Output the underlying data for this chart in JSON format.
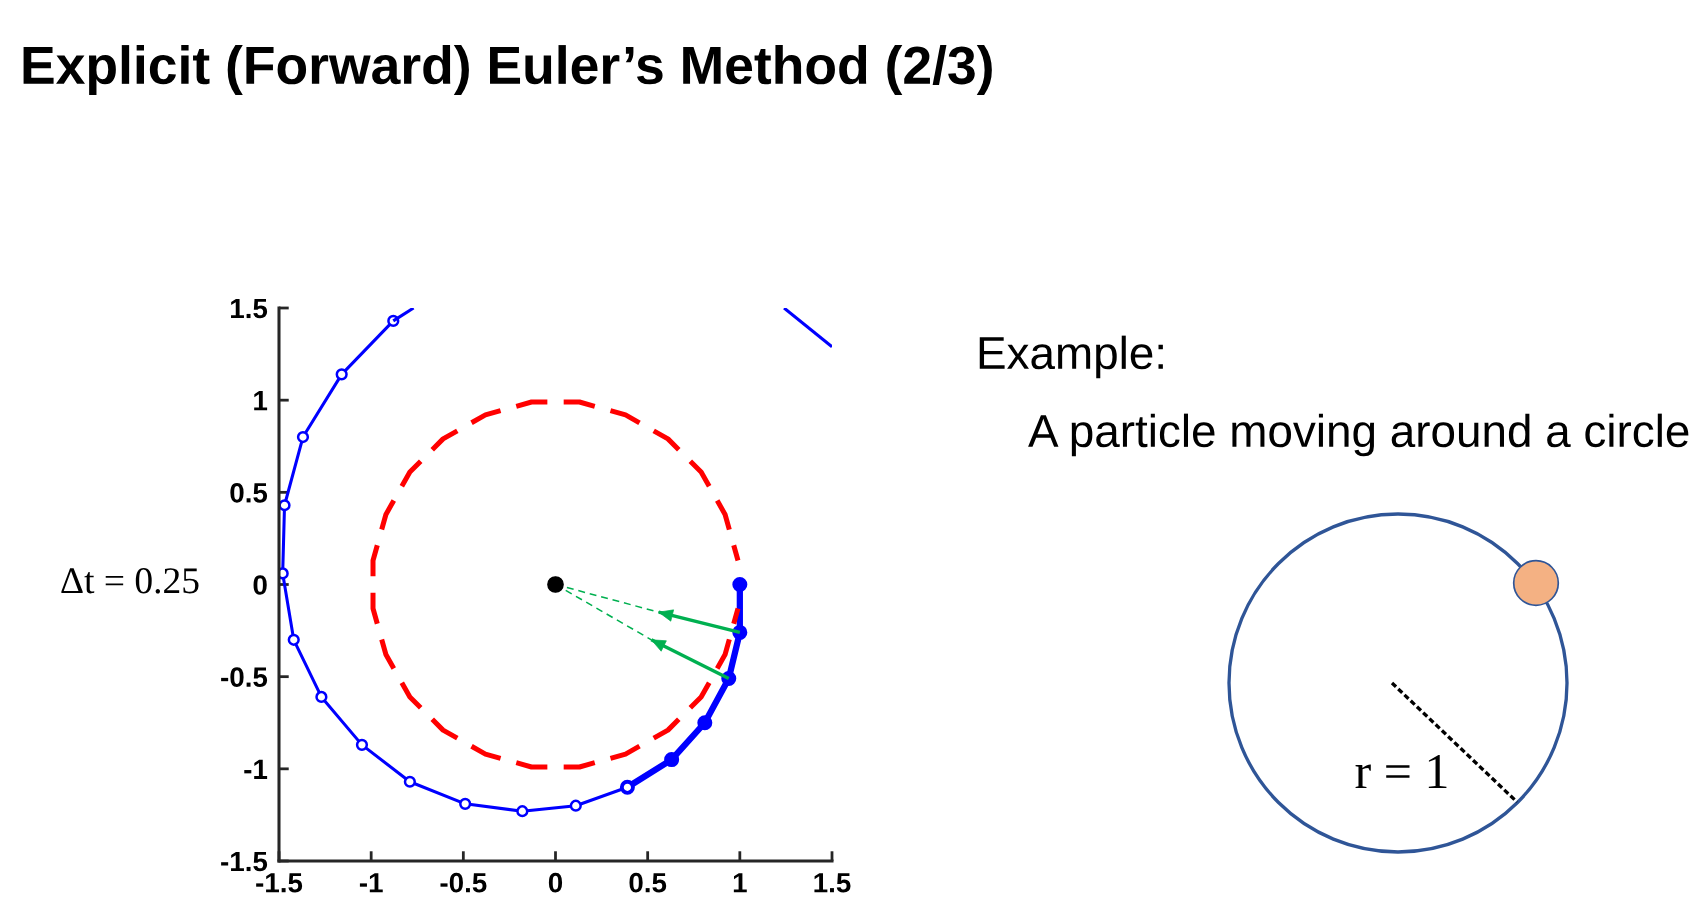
{
  "chart_data": {
    "type": "line",
    "title": "Explicit (Forward) Euler’s Method (2/3)",
    "annotations": [
      "Δt = 0.25",
      "Example:",
      "A particle moving around a circle",
      "r = 1"
    ],
    "xlim": [
      -1.5,
      1.5
    ],
    "ylim": [
      -1.5,
      1.5
    ],
    "xticks": [
      -1.5,
      -1,
      -0.5,
      0,
      0.5,
      1,
      1.5
    ],
    "yticks": [
      -1.5,
      -1,
      -0.5,
      0,
      0.5,
      1,
      1.5
    ],
    "series": [
      {
        "color": "#ff0000",
        "line_style": "dashed",
        "marker": "none",
        "x": [
          0.99,
          0.92,
          0.79,
          0.61,
          0.38,
          0.13,
          -0.13,
          -0.38,
          -0.61,
          -0.79,
          -0.92,
          -0.99,
          -0.99,
          -0.92,
          -0.79,
          -0.61,
          -0.38,
          -0.13,
          0.13,
          0.38,
          0.61,
          0.79,
          0.92,
          0.99
        ],
        "values": [
          0.13,
          0.38,
          0.61,
          0.79,
          0.92,
          0.99,
          0.99,
          0.92,
          0.79,
          0.61,
          0.38,
          0.13,
          -0.13,
          -0.38,
          -0.61,
          -0.79,
          -0.92,
          -0.99,
          -0.99,
          -0.92,
          -0.79,
          -0.61,
          -0.38,
          -0.13
        ]
      },
      {
        "color": "#0000ff",
        "line_style": "solid",
        "marker": "circle",
        "x": [
          1,
          1,
          0.94,
          0.81,
          0.63,
          0.39
        ],
        "values": [
          0,
          -0.26,
          -0.51,
          -0.75,
          -0.95,
          -1.1
        ]
      },
      {
        "color": "#0000ff",
        "line_style": "solid",
        "marker": "circle",
        "x": [
          0.39,
          0.11,
          -0.18,
          -0.49,
          -0.79,
          -1.05,
          -1.27,
          -1.42,
          -1.48,
          -1.47,
          -1.37,
          -1.16,
          -0.88
        ],
        "values": [
          -1.1,
          -1.2,
          -1.23,
          -1.19,
          -1.07,
          -0.87,
          -0.61,
          -0.3,
          0.06,
          0.43,
          0.8,
          1.14,
          1.43
        ]
      },
      {
        "color": "#0000ff",
        "line_style": "solid",
        "marker": "none",
        "x": [
          -0.88,
          -0.77
        ],
        "values": [
          1.43,
          1.5
        ]
      },
      {
        "color": "#0000ff",
        "line_style": "solid",
        "marker": "none",
        "x": [
          1.24,
          1.5
        ],
        "values": [
          1.5,
          1.29
        ]
      },
      {
        "color": "#00b050",
        "line_style": "dashed",
        "marker": "none",
        "x": [
          0,
          0.56,
          null,
          0,
          0.52
        ],
        "values": [
          0,
          -0.15,
          null,
          0,
          -0.3
        ]
      },
      {
        "color": "#00b050",
        "line_style": "solid",
        "x": [
          1,
          0.56
        ],
        "values": [
          -0.26,
          -0.15
        ]
      },
      {
        "color": "#00b050",
        "line_style": "solid",
        "x": [
          0.94,
          0.52
        ],
        "values": [
          -0.51,
          -0.3
        ]
      },
      {
        "type": "scatter",
        "color": "#000000",
        "marker": "circle",
        "x": [
          0
        ],
        "values": [
          0
        ]
      }
    ]
  }
}
